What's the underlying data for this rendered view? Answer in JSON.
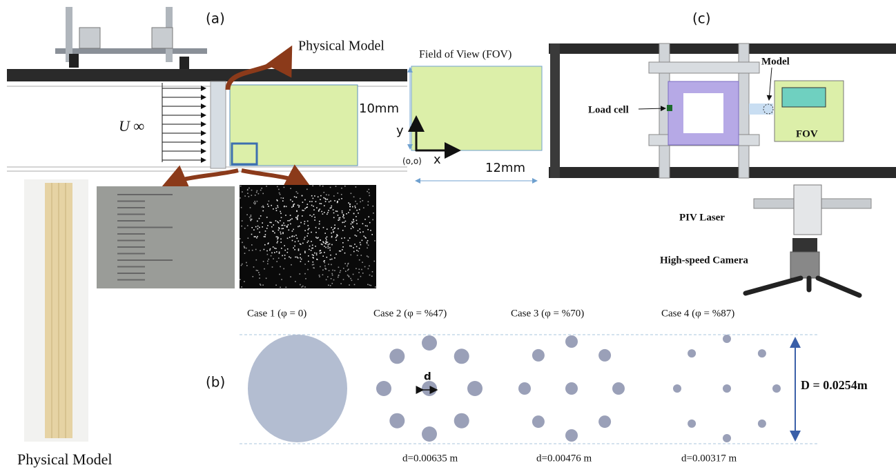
{
  "panel_a": {
    "label": "(a)",
    "flow_label": "U ∞",
    "model_label": "Physical Model",
    "photo_label": "Physical Model"
  },
  "fov": {
    "title": "Field of View (FOV)",
    "height_label": "10mm",
    "width_label": "12mm",
    "y_axis": "y",
    "x_axis": "x",
    "origin": "(o,o)"
  },
  "panel_c": {
    "label": "(c)",
    "model": "Model",
    "load_cell": "Load cell",
    "fov": "FOV",
    "laser": "PIV Laser",
    "camera": "High-speed Camera"
  },
  "panel_b": {
    "label": "(b)",
    "d_label": "d",
    "D_label": "D = 0.0254m",
    "cases": [
      {
        "title": "Case 1 (φ = 0)"
      },
      {
        "title": "Case 2 (φ = %47)",
        "diameter": "d=0.00635 m"
      },
      {
        "title": "Case 3 (φ = %70)",
        "diameter": "d=0.00476 m"
      },
      {
        "title": "Case 4 (φ = %87)",
        "diameter": "d=0.00317 m"
      }
    ]
  }
}
